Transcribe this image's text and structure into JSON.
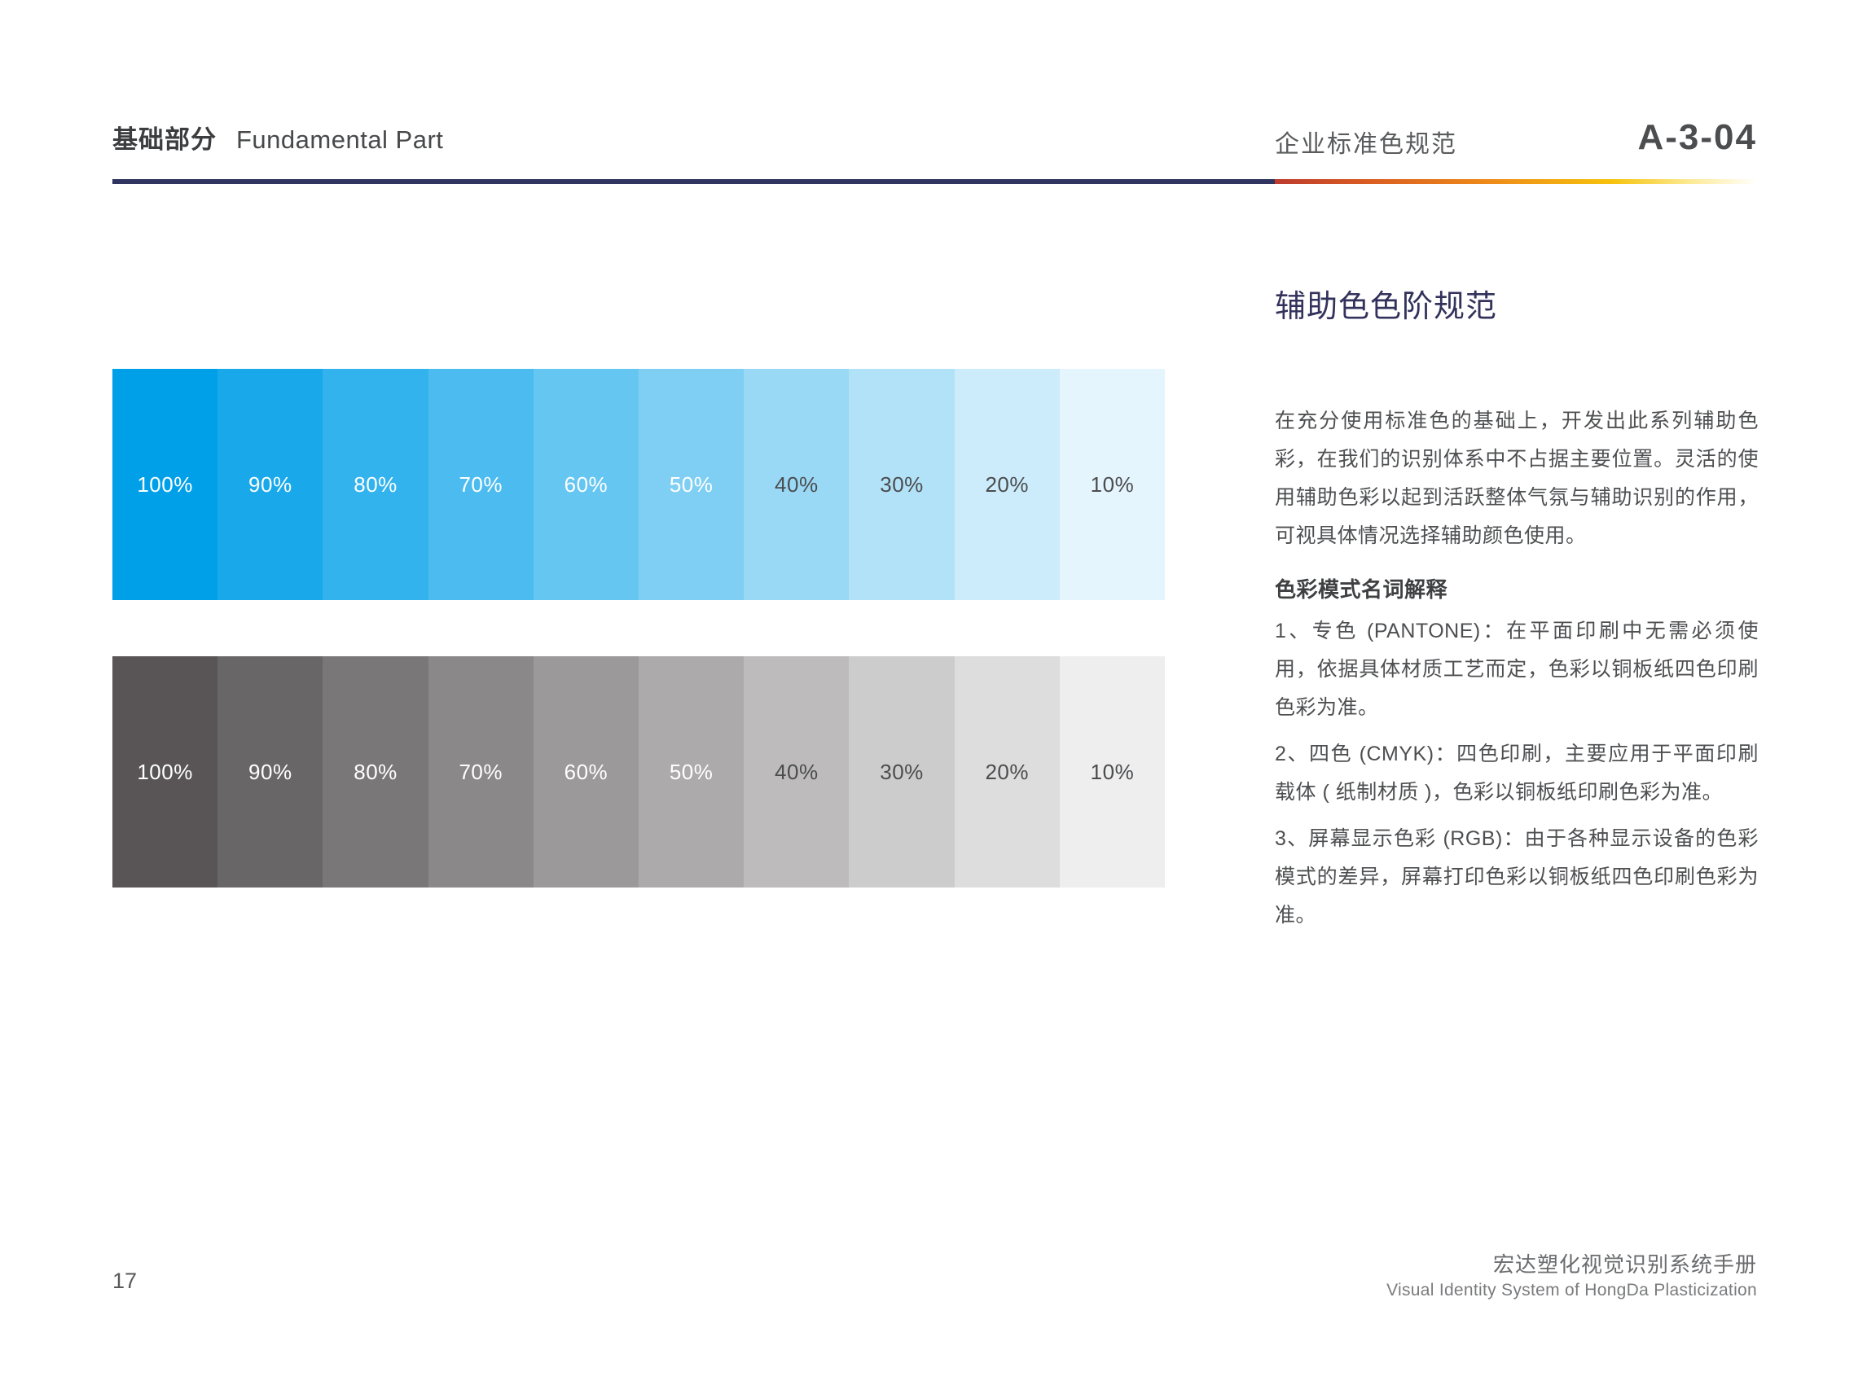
{
  "header": {
    "section_zh": "基础部分",
    "section_en": "Fundamental Part",
    "topic": "企业标准色规范",
    "code": "A-3-04"
  },
  "colors": {
    "rule_navy": "#2f3460",
    "rule_gradient": [
      "#bc3b2e 0%",
      "#d85a22 18%",
      "#ee8c1a 45%",
      "#f6c30d 70%",
      "rgba(250,216,60,0.55) 86%",
      "rgba(255,255,255,0) 100%"
    ],
    "title_navy": "#32325c",
    "blue_base": "#00a0e9",
    "gray_base": "#595556",
    "label_light": "#ffffff",
    "label_dark": "#4b4c4e"
  },
  "scales": {
    "labels": [
      "100%",
      "90%",
      "80%",
      "70%",
      "60%",
      "50%",
      "40%",
      "30%",
      "20%",
      "10%"
    ],
    "opacities": [
      1,
      0.9,
      0.8,
      0.7,
      0.6,
      0.5,
      0.4,
      0.3,
      0.2,
      0.1
    ],
    "bands": {
      "blue": {
        "base": "#00a0e9"
      },
      "gray": {
        "base": "#595556"
      }
    }
  },
  "aside": {
    "title": "辅助色色阶规范",
    "intro": "在充分使用标准色的基础上，开发出此系列辅助色彩，在我们的识别体系中不占据主要位置。灵活的使用辅助色彩以起到活跃整体气氛与辅助识别的作用，可视具体情况选择辅助颜色使用。",
    "glossary_title": "色彩模式名词解释",
    "glossary": [
      "1、专色 (PANTONE)：在平面印刷中无需必须使用，依据具体材质工艺而定，色彩以铜板纸四色印刷色彩为准。",
      "2、四色 (CMYK)：四色印刷，主要应用于平面印刷载体 ( 纸制材质 )，色彩以铜板纸印刷色彩为准。",
      "3、屏幕显示色彩 (RGB)：由于各种显示设备的色彩模式的差异，屏幕打印色彩以铜板纸四色印刷色彩为准。"
    ]
  },
  "footer": {
    "page_number": "17",
    "manual_zh": "宏达塑化视觉识别系统手册",
    "manual_en": "Visual Identity System of HongDa Plasticization"
  }
}
